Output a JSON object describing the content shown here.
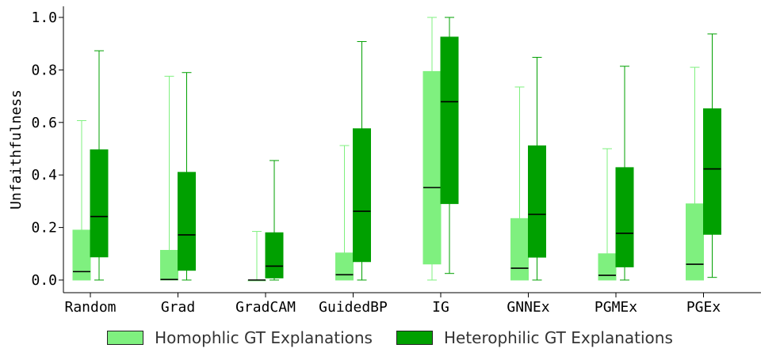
{
  "chart_data": {
    "type": "boxplot",
    "ylabel": "Unfaithfulness",
    "ylim": [
      -0.05,
      1.05
    ],
    "yticks": [
      "0.0",
      "0.2",
      "0.4",
      "0.6",
      "0.8",
      "1.0"
    ],
    "categories": [
      "Random",
      "Grad",
      "GradCAM",
      "GuidedBP",
      "IG",
      "GNNEx",
      "PGMEx",
      "PGEx"
    ],
    "legend_placement": "bottom-center",
    "series": [
      {
        "name": "Homophlic GT Explanations",
        "color": "#7ff07f",
        "boxes": [
          {
            "min": 0.0,
            "q1": 0.0,
            "median": 0.032,
            "q3": 0.19,
            "max": 0.607
          },
          {
            "min": 0.0,
            "q1": 0.0,
            "median": 0.002,
            "q3": 0.113,
            "max": 0.776
          },
          {
            "min": 0.0,
            "q1": 0.0,
            "median": 0.0,
            "q3": 0.0,
            "max": 0.185
          },
          {
            "min": 0.0,
            "q1": 0.0,
            "median": 0.02,
            "q3": 0.103,
            "max": 0.512
          },
          {
            "min": 0.0,
            "q1": 0.061,
            "median": 0.352,
            "q3": 0.794,
            "max": 1.0
          },
          {
            "min": 0.0,
            "q1": 0.0,
            "median": 0.045,
            "q3": 0.234,
            "max": 0.735
          },
          {
            "min": 0.0,
            "q1": 0.0,
            "median": 0.018,
            "q3": 0.1,
            "max": 0.5
          },
          {
            "min": 0.0,
            "q1": 0.0,
            "median": 0.06,
            "q3": 0.29,
            "max": 0.81
          }
        ]
      },
      {
        "name": "Heterophilic GT Explanations",
        "color": "#00a000",
        "boxes": [
          {
            "min": 0.0,
            "q1": 0.088,
            "median": 0.242,
            "q3": 0.496,
            "max": 0.873
          },
          {
            "min": 0.0,
            "q1": 0.037,
            "median": 0.172,
            "q3": 0.41,
            "max": 0.79
          },
          {
            "min": 0.0,
            "q1": 0.008,
            "median": 0.053,
            "q3": 0.18,
            "max": 0.455
          },
          {
            "min": 0.0,
            "q1": 0.07,
            "median": 0.262,
            "q3": 0.576,
            "max": 0.908
          },
          {
            "min": 0.025,
            "q1": 0.291,
            "median": 0.679,
            "q3": 0.925,
            "max": 1.0
          },
          {
            "min": 0.0,
            "q1": 0.087,
            "median": 0.25,
            "q3": 0.511,
            "max": 0.848
          },
          {
            "min": 0.0,
            "q1": 0.05,
            "median": 0.178,
            "q3": 0.428,
            "max": 0.814
          },
          {
            "min": 0.01,
            "q1": 0.174,
            "median": 0.423,
            "q3": 0.652,
            "max": 0.937
          }
        ]
      }
    ]
  }
}
